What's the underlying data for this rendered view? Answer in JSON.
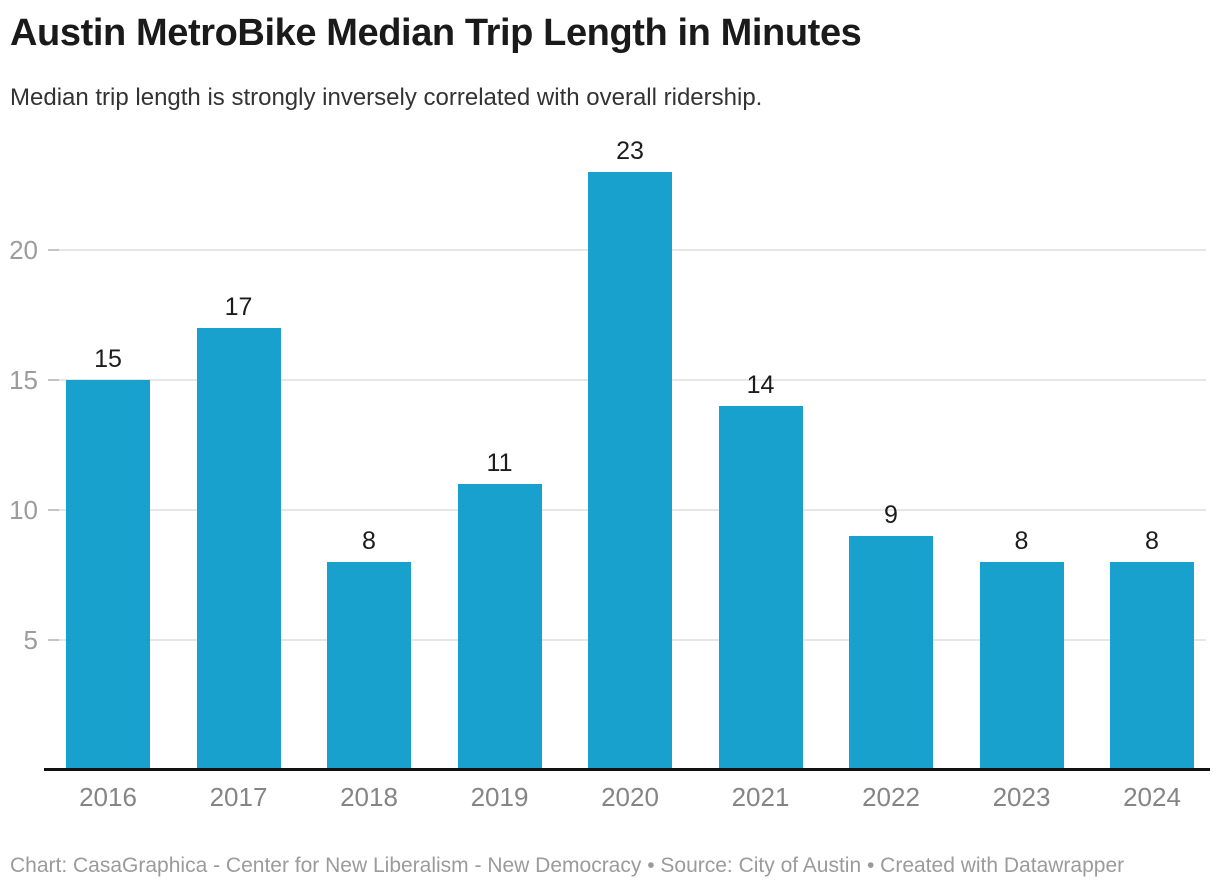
{
  "header": {
    "title": "Austin MetroBike Median Trip Length in Minutes",
    "subtitle": "Median trip length is strongly inversely correlated with overall ridership."
  },
  "footer": {
    "text": "Chart: CasaGraphica - Center for New Liberalism - New Democracy • Source: City of Austin • Created with Datawrapper"
  },
  "colors": {
    "bar": "#18a1cd",
    "gridline": "#e6e6e6",
    "tick_dash": "#c4c4c4",
    "y_tick_label": "#9c9c9c",
    "x_axis_label": "#858585",
    "value_label": "#1c1c1c",
    "baseline": "#111111",
    "title": "#1a1a1a",
    "subtitle": "#333333",
    "footer_text": "#9b9b9b"
  },
  "chart_data": {
    "type": "bar",
    "title": "Austin MetroBike Median Trip Length in Minutes",
    "subtitle": "Median trip length is strongly inversely correlated with overall ridership.",
    "categories": [
      "2016",
      "2017",
      "2018",
      "2019",
      "2020",
      "2021",
      "2022",
      "2023",
      "2024"
    ],
    "values": [
      15,
      17,
      8,
      11,
      23,
      14,
      9,
      8,
      8
    ],
    "xlabel": "",
    "ylabel": "",
    "ylim": [
      0,
      23
    ],
    "yticks": [
      5,
      10,
      15,
      20
    ],
    "grid": true,
    "value_labels": true,
    "legend": "none"
  }
}
